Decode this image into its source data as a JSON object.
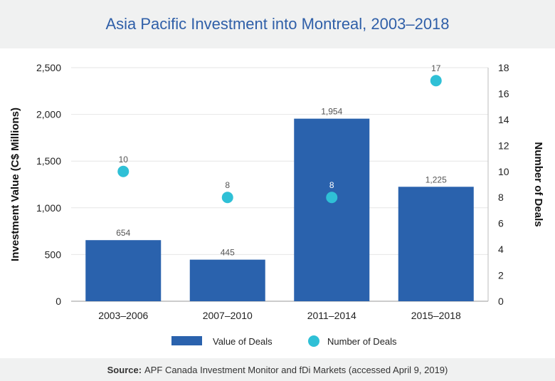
{
  "title": "Asia Pacific Investment into Montreal, 2003–2018",
  "source": {
    "label": "Source:",
    "text": "APF Canada Investment Monitor and fDi Markets (accessed April 9, 2019)"
  },
  "colors": {
    "bar": "#2a62ad",
    "dot": "#2fc0d6",
    "title": "#2f5fa8",
    "band": "#f0f1f1"
  },
  "chart_data": {
    "type": "bar",
    "categories": [
      "2003–2006",
      "2007–2010",
      "2011–2014",
      "2015–2018"
    ],
    "series": [
      {
        "name": "Value of Deals",
        "type": "bar",
        "axis": "left",
        "values": [
          654,
          445,
          1954,
          1225
        ],
        "labels": [
          "654",
          "445",
          "1,954",
          "1,225"
        ]
      },
      {
        "name": "Number of Deals",
        "type": "scatter",
        "axis": "right",
        "values": [
          10,
          8,
          8,
          17
        ],
        "labels": [
          "10",
          "8",
          "8",
          "17"
        ]
      }
    ],
    "ylabel": "Investment Value (C$ Millions)",
    "y2label": "Number of Deals",
    "ylim": [
      0,
      2500
    ],
    "y2lim": [
      0,
      18
    ],
    "yticks": [
      "0",
      "500",
      "1,000",
      "1,500",
      "2,000",
      "2,500"
    ],
    "y2ticks": [
      "0",
      "2",
      "4",
      "6",
      "8",
      "10",
      "12",
      "14",
      "16",
      "18"
    ],
    "legend": "bottom",
    "grid": true
  }
}
